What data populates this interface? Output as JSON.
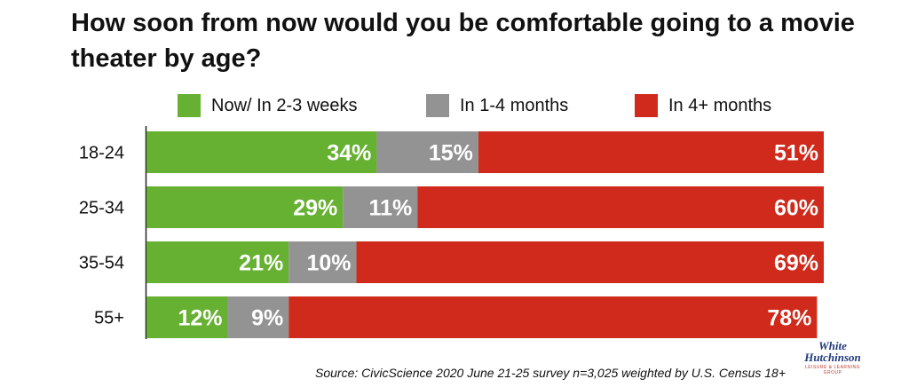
{
  "title": "How soon from now would you be comfortable going to a movie theater by age?",
  "source": "Source: CivicScience 2020 June 21-25 survey n=3,025 weighted by U.S. Census 18+",
  "logo": {
    "line1": "White",
    "line2": "Hutchinson",
    "tagline": "LEISURE & LEARNING GROUP"
  },
  "colors": {
    "now": "#66b032",
    "mid": "#939393",
    "later": "#cf2a1b"
  },
  "chart_data": {
    "type": "bar",
    "orientation": "horizontal",
    "stacked": true,
    "percent": true,
    "categories": [
      "18-24",
      "25-34",
      "35-54",
      "55+"
    ],
    "series": [
      {
        "name": "Now/ In 2-3 weeks",
        "values": [
          34,
          29,
          21,
          12
        ]
      },
      {
        "name": "In 1-4 months",
        "values": [
          15,
          11,
          10,
          9
        ]
      },
      {
        "name": "In 4+ months",
        "values": [
          51,
          60,
          69,
          78
        ]
      }
    ],
    "xlim": [
      0,
      100
    ],
    "legend": "top",
    "grid": false
  }
}
